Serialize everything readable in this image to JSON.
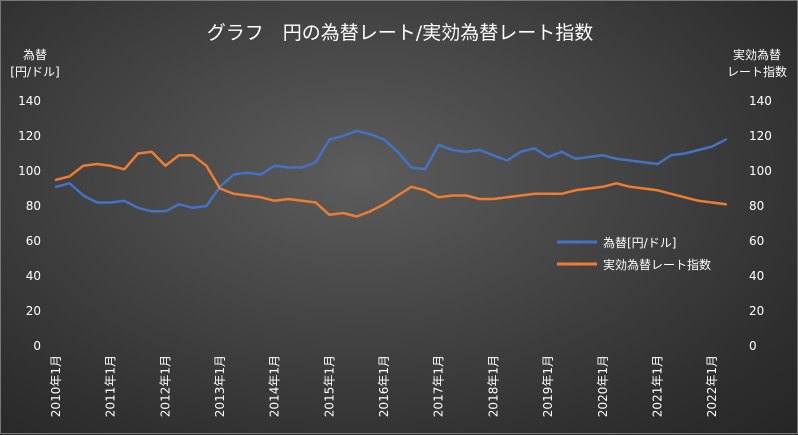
{
  "chart_data": {
    "type": "line",
    "title": "グラフ　円の為替レート/実効為替レート指数",
    "ylabel_left": [
      "為替",
      "[円/ドル]"
    ],
    "ylabel_right": [
      "実効為替",
      "レート指数"
    ],
    "ylim_left": [
      0,
      140
    ],
    "ylim_right": [
      0,
      140
    ],
    "yticks_left": [
      "0",
      "20",
      "40",
      "60",
      "80",
      "100",
      "120",
      "140"
    ],
    "yticks_right": [
      "0",
      "20",
      "40",
      "60",
      "80",
      "100",
      "120",
      "140"
    ],
    "xticks": [
      "2010年1月",
      "2011年1月",
      "2012年1月",
      "2013年1月",
      "2014年1月",
      "2015年1月",
      "2016年1月",
      "2017年1月",
      "2018年1月",
      "2019年1月",
      "2020年1月",
      "2021年1月",
      "2022年1月"
    ],
    "grid": false,
    "legend_position": "center-right",
    "series": [
      {
        "name": "為替[円/ドル]",
        "axis": "left",
        "color": "#4472C4",
        "x": [
          2010.0,
          2010.25,
          2010.5,
          2010.75,
          2011.0,
          2011.25,
          2011.5,
          2011.75,
          2012.0,
          2012.25,
          2012.5,
          2012.75,
          2013.0,
          2013.25,
          2013.5,
          2013.75,
          2014.0,
          2014.25,
          2014.5,
          2014.75,
          2015.0,
          2015.25,
          2015.5,
          2015.75,
          2016.0,
          2016.25,
          2016.5,
          2016.75,
          2017.0,
          2017.25,
          2017.5,
          2017.75,
          2018.0,
          2018.25,
          2018.5,
          2018.75,
          2019.0,
          2019.25,
          2019.5,
          2019.75,
          2020.0,
          2020.25,
          2020.5,
          2020.75,
          2021.0,
          2021.25,
          2021.5,
          2021.75,
          2022.0,
          2022.25
        ],
        "values": [
          91,
          93,
          86,
          82,
          82,
          83,
          79,
          77,
          77,
          81,
          79,
          80,
          91,
          98,
          99,
          98,
          103,
          102,
          102,
          105,
          118,
          120,
          123,
          121,
          118,
          111,
          102,
          101,
          115,
          112,
          111,
          112,
          109,
          106,
          111,
          113,
          108,
          111,
          107,
          108,
          109,
          107,
          106,
          105,
          104,
          109,
          110,
          112,
          114,
          118
        ]
      },
      {
        "name": "実効為替レート指数",
        "axis": "right",
        "color": "#ED7D31",
        "x": [
          2010.0,
          2010.25,
          2010.5,
          2010.75,
          2011.0,
          2011.25,
          2011.5,
          2011.75,
          2012.0,
          2012.25,
          2012.5,
          2012.75,
          2013.0,
          2013.25,
          2013.5,
          2013.75,
          2014.0,
          2014.25,
          2014.5,
          2014.75,
          2015.0,
          2015.25,
          2015.5,
          2015.75,
          2016.0,
          2016.25,
          2016.5,
          2016.75,
          2017.0,
          2017.25,
          2017.5,
          2017.75,
          2018.0,
          2018.25,
          2018.5,
          2018.75,
          2019.0,
          2019.25,
          2019.5,
          2019.75,
          2020.0,
          2020.25,
          2020.5,
          2020.75,
          2021.0,
          2021.25,
          2021.5,
          2021.75,
          2022.0,
          2022.25
        ],
        "values": [
          95,
          97,
          103,
          104,
          103,
          101,
          110,
          111,
          103,
          109,
          109,
          103,
          90,
          87,
          86,
          85,
          83,
          84,
          83,
          82,
          75,
          76,
          74,
          77,
          81,
          86,
          91,
          89,
          85,
          86,
          86,
          84,
          84,
          85,
          86,
          87,
          87,
          87,
          89,
          90,
          91,
          93,
          91,
          90,
          89,
          87,
          85,
          83,
          82,
          81
        ]
      }
    ]
  }
}
